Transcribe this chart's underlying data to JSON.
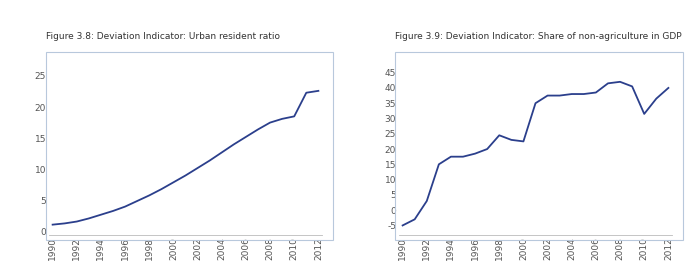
{
  "fig1_title": "Figure 3.8: Deviation Indicator: Urban resident ratio",
  "fig2_title": "Figure 3.9: Deviation Indicator: Share of non-agriculture in GDP",
  "chart1": {
    "years": [
      1990,
      1991,
      1992,
      1993,
      1994,
      1995,
      1996,
      1997,
      1998,
      1999,
      2000,
      2001,
      2002,
      2003,
      2004,
      2005,
      2006,
      2007,
      2008,
      2009,
      2010,
      2011,
      2012
    ],
    "values": [
      1.1,
      1.3,
      1.6,
      2.1,
      2.7,
      3.3,
      4.0,
      4.9,
      5.8,
      6.8,
      7.9,
      9.0,
      10.2,
      11.4,
      12.7,
      14.0,
      15.2,
      16.4,
      17.5,
      18.1,
      18.5,
      22.3,
      22.6
    ],
    "ylim": [
      -0.5,
      27
    ],
    "yticks": [
      0,
      5,
      10,
      15,
      20,
      25
    ],
    "line_color": "#2b3f8c"
  },
  "chart2": {
    "years": [
      1990,
      1991,
      1992,
      1993,
      1994,
      1995,
      1996,
      1997,
      1998,
      1999,
      2000,
      2001,
      2002,
      2003,
      2004,
      2005,
      2006,
      2007,
      2008,
      2009,
      2010,
      2011,
      2012
    ],
    "values": [
      -5.0,
      -3.0,
      3.0,
      15.0,
      17.5,
      17.5,
      18.5,
      20.0,
      24.5,
      23.0,
      22.5,
      35.0,
      37.5,
      37.5,
      38.0,
      38.0,
      38.5,
      41.5,
      42.0,
      40.5,
      31.5,
      36.5,
      40.0
    ],
    "ylim": [
      -8,
      48
    ],
    "yticks": [
      -5,
      0,
      5,
      10,
      15,
      20,
      25,
      30,
      35,
      40,
      45
    ],
    "line_color": "#2b3f8c"
  },
  "title_fontsize": 6.5,
  "tick_fontsize": 6.5,
  "tick_color": "#555555",
  "line_color_main": "#2b3f8c",
  "box_edge_color": "#b8c8dc",
  "axis_line_color": "#bbbbbb",
  "bg_color": "#ffffff",
  "fig_bg_color": "#ffffff"
}
